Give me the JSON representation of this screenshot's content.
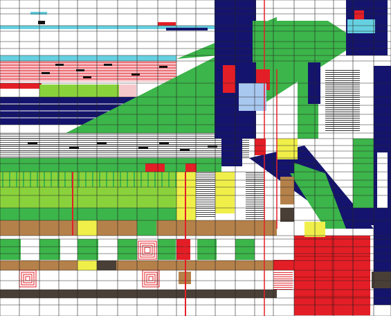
{
  "artwork": {
    "style": "abstract geometric grid painting",
    "palette": {
      "navy": "#14146e",
      "green": "#3cb54a",
      "light_green": "#8ad23c",
      "cyan": "#66d0e0",
      "pink": "#f6c8cc",
      "red": "#e41e26",
      "yellow": "#f0ef4a",
      "brown": "#b5814a",
      "dark_brown": "#4a3f36",
      "grey": "#d8d8d8",
      "light_blue": "#a9c8f0",
      "black": "#111111",
      "white": "#ffffff"
    }
  }
}
